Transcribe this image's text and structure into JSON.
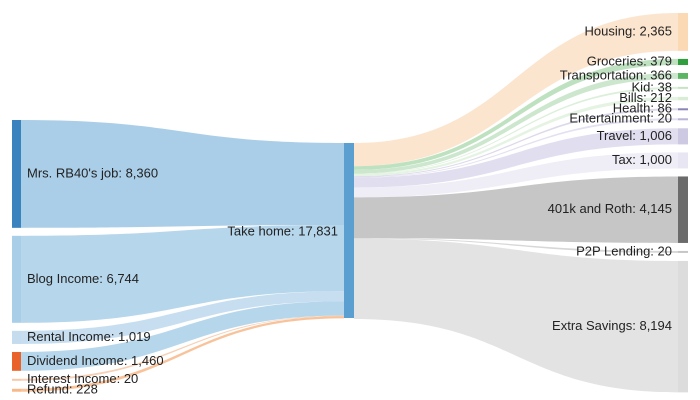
{
  "chart_data": {
    "type": "sankey",
    "center": {
      "name": "Take home",
      "value": 17831,
      "label": "Take home: 17,831",
      "color": "#5a9fd0"
    },
    "sources": [
      {
        "name": "Mrs. RB40's job",
        "value": 8360,
        "label": "Mrs. RB40's job: 8,360",
        "color": "#3b83be",
        "flow_color": "#9cc6e4"
      },
      {
        "name": "Blog Income",
        "value": 6744,
        "label": "Blog Income: 6,744",
        "color": "#a9cfe8",
        "flow_color": "#a9cfe8"
      },
      {
        "name": "Rental Income",
        "value": 1019,
        "label": "Rental Income: 1,019",
        "color": "#c4dcee",
        "flow_color": "#bdd8ed"
      },
      {
        "name": "Dividend Income",
        "value": 1460,
        "label": "Dividend Income: 1,460",
        "color": "#e8622a",
        "flow_color": "#a9cfe8"
      },
      {
        "name": "Interest Income",
        "value": 20,
        "label": "Interest Income: 20",
        "color": "#f6c8a8",
        "flow_color": "#f6c8a8"
      },
      {
        "name": "Refund",
        "value": 228,
        "label": "Refund: 228",
        "color": "#f7b98a",
        "flow_color": "#f7b98a"
      }
    ],
    "targets": [
      {
        "name": "Housing",
        "value": 2365,
        "label": "Housing: 2,365",
        "color": "#fcd9b5",
        "flow_color": "#fbe0c6"
      },
      {
        "name": "Groceries",
        "value": 379,
        "label": "Groceries: 379",
        "color": "#2f9e3d",
        "flow_color": "#b3dcb5"
      },
      {
        "name": "Transportation",
        "value": 366,
        "label": "Transportation: 366",
        "color": "#5bb562",
        "flow_color": "#c3e3c4"
      },
      {
        "name": "Kid",
        "value": 38,
        "label": "Kid: 38",
        "color": "#c6e4c2",
        "flow_color": "#d6ecd3"
      },
      {
        "name": "Bills",
        "value": 212,
        "label": "Bills: 212",
        "color": "#d8edd4",
        "flow_color": "#e1f1de"
      },
      {
        "name": "Health",
        "value": 86,
        "label": "Health: 86",
        "color": "#8c86b8",
        "flow_color": "#d6d4e6"
      },
      {
        "name": "Entertainment",
        "value": 20,
        "label": "Entertainment: 20",
        "color": "#b9b5d6",
        "flow_color": "#dedcee"
      },
      {
        "name": "Travel",
        "value": 1006,
        "label": "Travel: 1,006",
        "color": "#cdc9e3",
        "flow_color": "#dcd9ec"
      },
      {
        "name": "Tax",
        "value": 1000,
        "label": "Tax: 1,000",
        "color": "#e8e6f2",
        "flow_color": "#eceaf4"
      },
      {
        "name": "401k and Roth",
        "value": 4145,
        "label": "401k and Roth: 4,145",
        "color": "#6b6b6b",
        "flow_color": "#bcbcbc"
      },
      {
        "name": "P2P Lending",
        "value": 20,
        "label": "P2P Lending: 20",
        "color": "#c6c6c6",
        "flow_color": "#d0d0d0"
      },
      {
        "name": "Extra Savings",
        "value": 8194,
        "label": "Extra Savings: 8,194",
        "color": "#dcdcdc",
        "flow_color": "#dedede"
      }
    ]
  }
}
